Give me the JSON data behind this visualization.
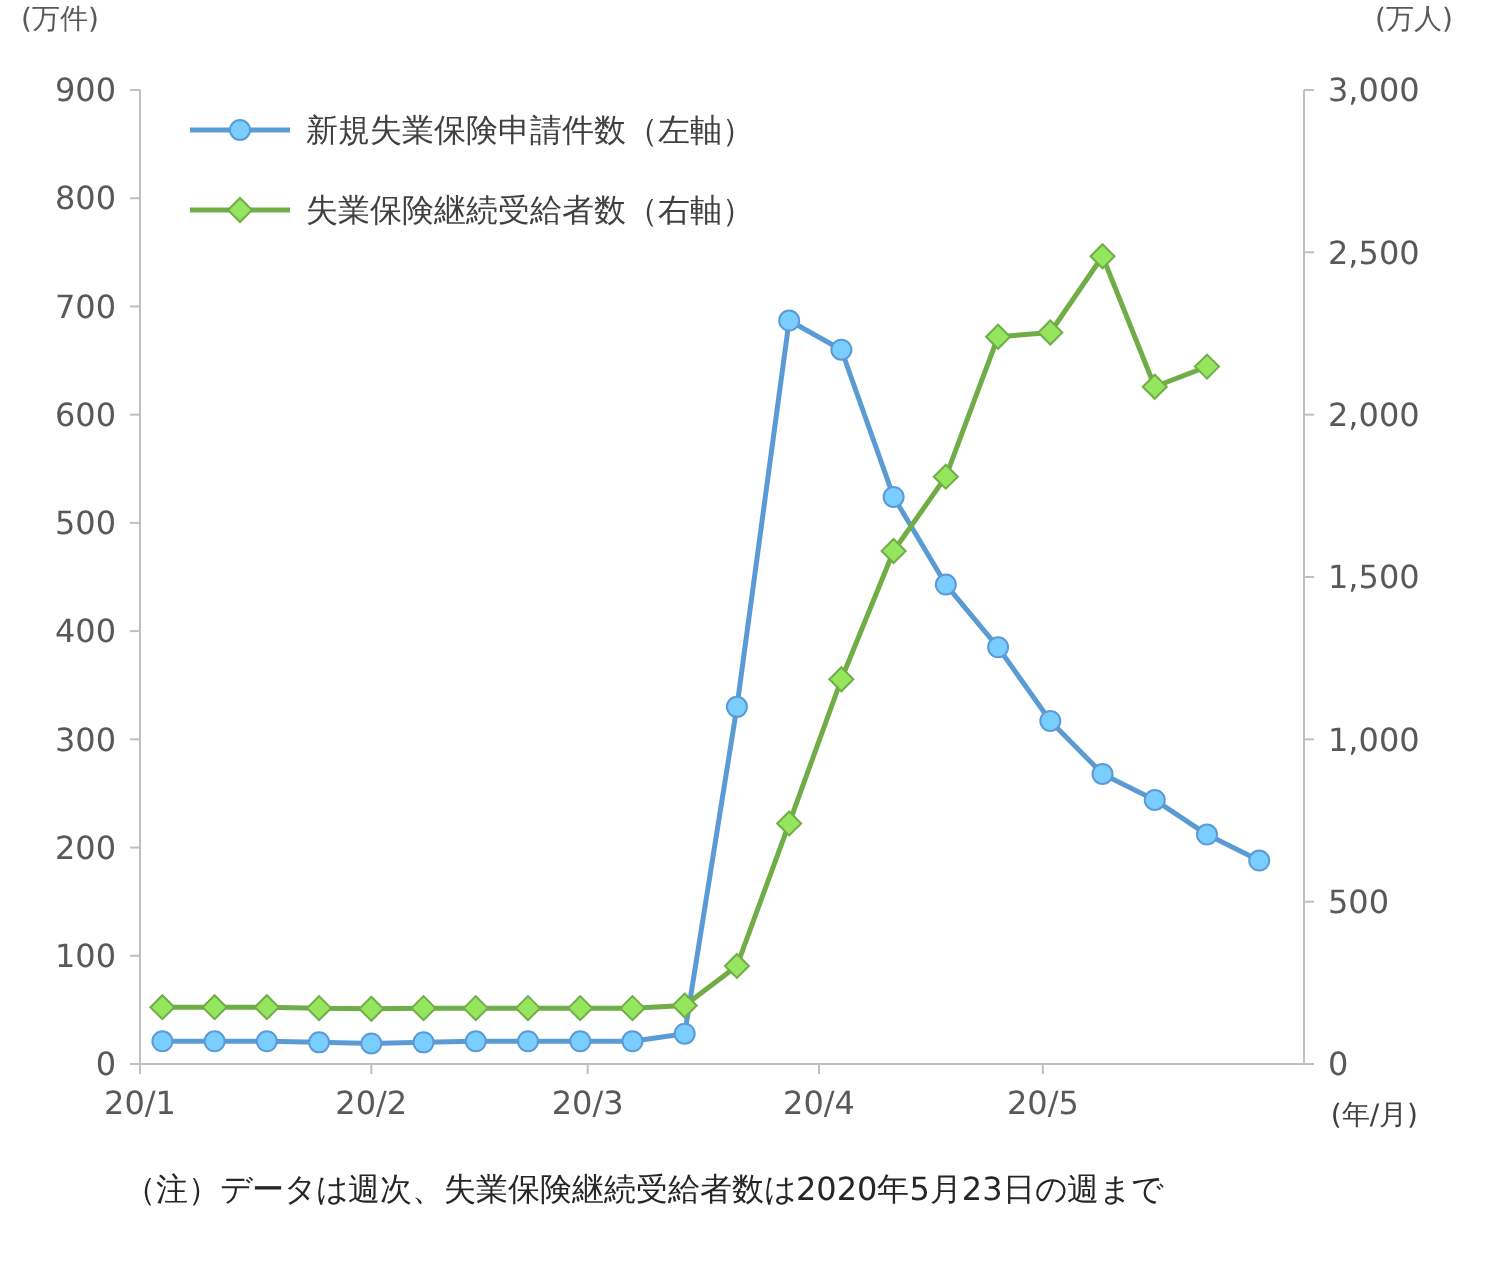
{
  "chart_data": {
    "type": "line",
    "ylabel": "(万件)",
    "y2label": "(万人)",
    "xlabel": "(年/月)",
    "x": [
      "2020-01-04",
      "2020-01-11",
      "2020-01-18",
      "2020-01-25",
      "2020-02-01",
      "2020-02-08",
      "2020-02-15",
      "2020-02-22",
      "2020-02-29",
      "2020-03-07",
      "2020-03-14",
      "2020-03-21",
      "2020-03-28",
      "2020-04-04",
      "2020-04-11",
      "2020-04-18",
      "2020-04-25",
      "2020-05-02",
      "2020-05-09",
      "2020-05-16",
      "2020-05-23",
      "2020-05-30"
    ],
    "series": [
      {
        "name": "新規失業保険申請件数（左軸）",
        "color": "#5b9bd5",
        "marker": "circle",
        "values": [
          21,
          21,
          21,
          20,
          19,
          20,
          21,
          21,
          21,
          21,
          28,
          330,
          687,
          660,
          524,
          443,
          385,
          317,
          268,
          244,
          212,
          188
        ]
      },
      {
        "name": "失業保険継続受給者数（右軸）",
        "color": "#70ad47",
        "marker": "diamond",
        "axis": "y2",
        "values": [
          175,
          175,
          175,
          172,
          170,
          172,
          172,
          172,
          172,
          172,
          180,
          302,
          741,
          1185,
          1580,
          1809,
          2240,
          2253,
          2488,
          2086,
          2148,
          null
        ]
      }
    ],
    "xlim": [
      "2020-01-01",
      "2020-06-05"
    ],
    "xticks": [
      {
        "value": "2020-01-01",
        "label": "20/1"
      },
      {
        "value": "2020-02-01",
        "label": "20/2"
      },
      {
        "value": "2020-03-01",
        "label": "20/3"
      },
      {
        "value": "2020-04-01",
        "label": "20/4"
      },
      {
        "value": "2020-05-01",
        "label": "20/5"
      }
    ],
    "ylim": [
      0,
      900
    ],
    "yticks": [
      0,
      100,
      200,
      300,
      400,
      500,
      600,
      700,
      800,
      900
    ],
    "y2lim": [
      0,
      3000
    ],
    "y2ticks": [
      0,
      {
        "value": 500,
        "label": "500"
      },
      {
        "value": 1000,
        "label": "1,000"
      },
      {
        "value": 1500,
        "label": "1,500"
      },
      {
        "value": 2000,
        "label": "2,000"
      },
      {
        "value": 2500,
        "label": "2,500"
      },
      {
        "value": 3000,
        "label": "3,000"
      }
    ],
    "legend": "top left",
    "grid": false,
    "annotations": [
      "（注）データは週次、失業保険継続受給者数は2020年5月23日の週まで"
    ]
  }
}
